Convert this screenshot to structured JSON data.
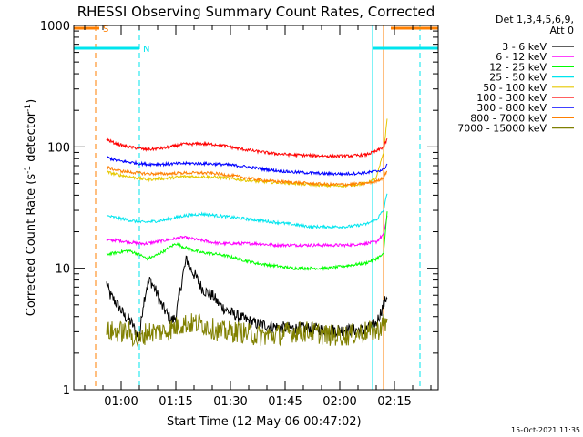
{
  "chart_data": {
    "type": "line",
    "title": "RHESSI Observing Summary Count Rates, Corrected",
    "xlabel": "Start Time (12-May-06 00:47:02)",
    "ylabel": "Corrected Count Rate (s",
    "ylabel_sup": "-1",
    "ylabel_tail": " detector",
    "ylabel_close": ")",
    "x_ticks": [
      "01:00",
      "01:15",
      "01:30",
      "01:45",
      "02:00",
      "02:15"
    ],
    "y_ticks": [
      "1",
      "10",
      "100",
      "1000"
    ],
    "y_scale": "log",
    "ylim": [
      1,
      1000
    ],
    "xlim_minutes_from_0047": [
      0,
      100
    ],
    "legend_title_1": "Det 1,3,4,5,6,9,",
    "legend_title_2": "Att 0",
    "legend_position": "top-right",
    "flags": [
      {
        "label": "S",
        "color": "#ff7f00",
        "x_start": 0,
        "x_end": 7,
        "y": 950
      },
      {
        "label": "N",
        "color": "#00e5ee",
        "x_start": 0,
        "x_end": 18,
        "y": 650
      },
      {
        "label": "",
        "color": "#ff7f00",
        "x_start": 87,
        "x_end": 100,
        "y": 950
      },
      {
        "label": "",
        "color": "#00e5ee",
        "x_start": 82,
        "x_end": 100,
        "y": 650
      }
    ],
    "vertical_markers": [
      {
        "x": 6,
        "color": "#ff7f00",
        "style": "dashed"
      },
      {
        "x": 18,
        "color": "#00e5ee",
        "style": "dashed"
      },
      {
        "x": 82,
        "color": "#00e5ee",
        "style": "solid"
      },
      {
        "x": 85,
        "color": "#ff7f00",
        "style": "solid"
      },
      {
        "x": 95,
        "color": "#00e5ee",
        "style": "dashed"
      }
    ],
    "series": [
      {
        "name": "3 - 6 keV",
        "color": "#000000",
        "x": [
          9,
          10,
          11,
          12,
          13,
          14,
          15,
          16,
          17,
          18,
          19,
          20,
          21,
          22,
          23,
          24,
          25,
          26,
          27,
          28,
          29,
          30,
          31,
          32,
          33,
          34,
          35,
          36,
          38,
          40,
          42,
          45,
          50,
          55,
          60,
          65,
          70,
          75,
          80,
          83,
          85,
          86
        ],
        "y": [
          7.5,
          6,
          5.5,
          5,
          4.5,
          4,
          3.8,
          3.5,
          3,
          2.6,
          5,
          7,
          8,
          7,
          6,
          5,
          4.5,
          4,
          3.7,
          4,
          6,
          9,
          12,
          10,
          9,
          8,
          7,
          6.5,
          6,
          5,
          4.5,
          4,
          3.5,
          3.3,
          3.2,
          3.2,
          3.1,
          3.1,
          3.1,
          3.5,
          5,
          6
        ]
      },
      {
        "name": "6 - 12 keV",
        "color": "#ff00ff",
        "x": [
          9,
          12,
          15,
          18,
          20,
          25,
          30,
          35,
          40,
          45,
          50,
          55,
          60,
          65,
          70,
          75,
          80,
          83,
          85,
          86
        ],
        "y": [
          17,
          17,
          16.5,
          16,
          16,
          17,
          18,
          17,
          16,
          16,
          16,
          15.5,
          15.5,
          15.5,
          15.5,
          15.5,
          16,
          16.5,
          19,
          27
        ]
      },
      {
        "name": "12 - 25 keV",
        "color": "#00ff00",
        "x": [
          9,
          12,
          15,
          18,
          20,
          22,
          25,
          28,
          30,
          33,
          35,
          40,
          45,
          50,
          55,
          60,
          65,
          70,
          75,
          80,
          83,
          85,
          86
        ],
        "y": [
          13,
          13.5,
          14,
          13,
          12,
          12.5,
          14,
          16,
          15,
          14,
          13.5,
          13,
          12,
          11,
          10.5,
          10,
          10,
          10,
          10.5,
          11,
          12,
          13,
          30
        ]
      },
      {
        "name": "25 - 50 keV",
        "color": "#00e5ee",
        "x": [
          9,
          12,
          15,
          18,
          20,
          25,
          30,
          35,
          40,
          45,
          50,
          55,
          60,
          65,
          70,
          75,
          80,
          83,
          85,
          86
        ],
        "y": [
          27,
          26,
          25,
          24,
          24,
          25,
          27,
          28,
          27,
          26,
          25,
          24,
          23,
          22,
          22,
          22,
          23,
          25,
          30,
          42
        ]
      },
      {
        "name": "50 - 100 keV",
        "color": "#e6c800",
        "x": [
          9,
          12,
          15,
          18,
          20,
          25,
          30,
          35,
          40,
          45,
          50,
          55,
          60,
          65,
          70,
          75,
          80,
          83,
          85,
          86
        ],
        "y": [
          62,
          59,
          57,
          55,
          54,
          55,
          57,
          57,
          56,
          54,
          52,
          51,
          50,
          49,
          48,
          48,
          50,
          55,
          90,
          170
        ]
      },
      {
        "name": "100 - 300 keV",
        "color": "#ff0000",
        "x": [
          9,
          12,
          15,
          18,
          20,
          25,
          30,
          35,
          40,
          45,
          50,
          55,
          60,
          65,
          70,
          75,
          80,
          83,
          85,
          86
        ],
        "y": [
          115,
          105,
          100,
          97,
          95,
          98,
          105,
          106,
          104,
          97,
          92,
          88,
          86,
          85,
          84,
          84,
          86,
          92,
          100,
          115
        ]
      },
      {
        "name": "300 - 800 keV",
        "color": "#0000ff",
        "x": [
          9,
          12,
          15,
          18,
          20,
          25,
          30,
          35,
          40,
          45,
          50,
          55,
          60,
          65,
          70,
          75,
          80,
          83,
          85,
          86
        ],
        "y": [
          82,
          77,
          75,
          73,
          72,
          72,
          73,
          73,
          72,
          70,
          67,
          64,
          62,
          61,
          60,
          60,
          61,
          63,
          65,
          72
        ]
      },
      {
        "name": "800 - 7000 keV",
        "color": "#ff7f00",
        "x": [
          9,
          12,
          15,
          18,
          20,
          25,
          30,
          35,
          40,
          45,
          50,
          55,
          60,
          65,
          70,
          75,
          80,
          83,
          85,
          86
        ],
        "y": [
          68,
          64,
          62,
          61,
          60,
          60,
          61,
          61,
          60,
          57,
          54,
          52,
          51,
          50,
          49,
          49,
          50,
          52,
          56,
          64
        ]
      },
      {
        "name": "7000 - 15000 keV",
        "color": "#808000",
        "x": [
          9,
          12,
          15,
          18,
          20,
          25,
          30,
          35,
          40,
          45,
          50,
          55,
          60,
          65,
          70,
          75,
          80,
          83,
          85,
          86
        ],
        "y": [
          3,
          3,
          3,
          2.5,
          3,
          3,
          3.5,
          3.5,
          3,
          3,
          2.8,
          2.8,
          3,
          3,
          2.8,
          2.8,
          3,
          3,
          3.5,
          3.5
        ]
      }
    ]
  },
  "footer": {
    "timestamp": "15-Oct-2021 11:35"
  }
}
